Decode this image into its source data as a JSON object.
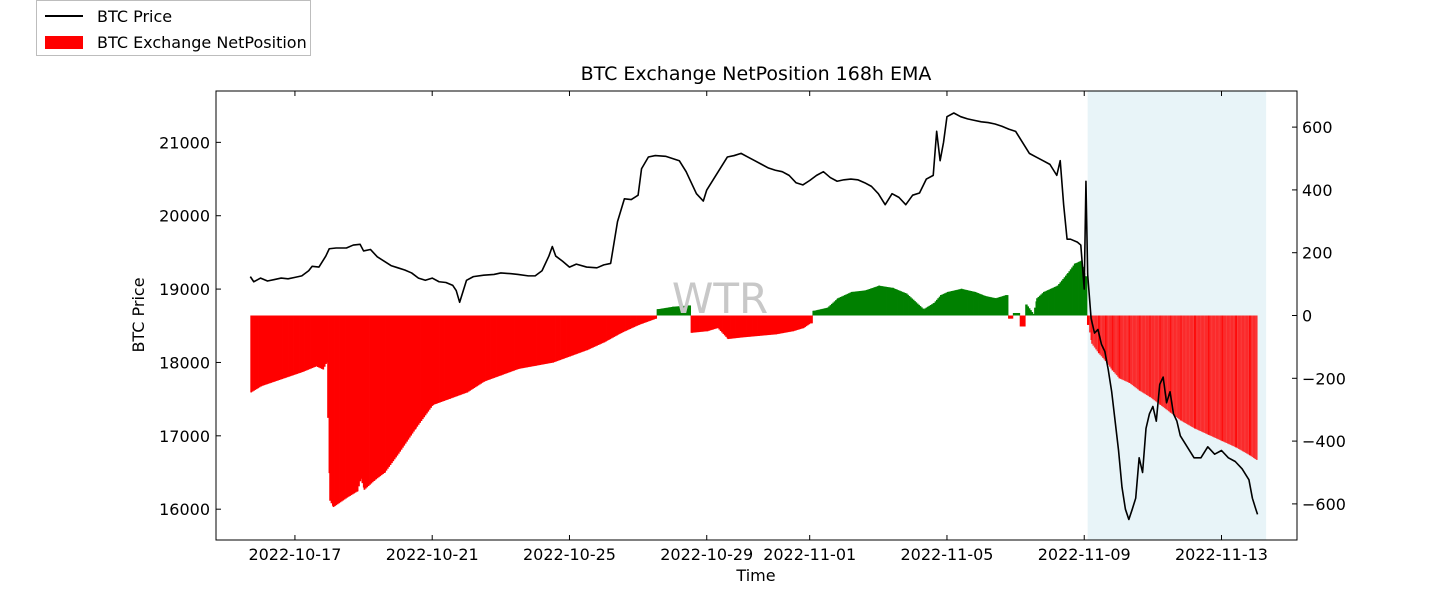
{
  "chart_data": {
    "type": "bar+line",
    "title": "BTC Exchange NetPosition 168h EMA",
    "xlabel": "Time",
    "ylabel_left": "BTC Price",
    "ylabel_right": "",
    "watermark": "WTR",
    "legend": {
      "placement": "top-left",
      "entries": [
        "BTC Price",
        "BTC Exchange NetPosition"
      ]
    },
    "x_range_days": [
      -2.3,
      29.2
    ],
    "x_ticks": [
      {
        "day": 0,
        "label": "2022-10-17"
      },
      {
        "day": 4,
        "label": "2022-10-21"
      },
      {
        "day": 8,
        "label": "2022-10-25"
      },
      {
        "day": 12,
        "label": "2022-10-29"
      },
      {
        "day": 15,
        "label": "2022-11-01"
      },
      {
        "day": 19,
        "label": "2022-11-05"
      },
      {
        "day": 23,
        "label": "2022-11-09"
      },
      {
        "day": 27,
        "label": "2022-11-13"
      }
    ],
    "ylim_left": [
      15580,
      21700
    ],
    "y_ticks_left": [
      16000,
      17000,
      18000,
      19000,
      20000,
      21000
    ],
    "ylim_right": [
      -715,
      715
    ],
    "y_ticks_right": [
      600,
      400,
      200,
      0,
      -200,
      -400,
      -600
    ],
    "y_tick_labels_right": [
      "600",
      "400",
      "200",
      "0",
      "−200",
      "−400",
      "−600"
    ],
    "shaded_region_days": [
      23.1,
      28.3
    ],
    "colors": {
      "price": "#000000",
      "negative": "#ff0000",
      "positive": "#008000",
      "shade": "#e8f4f8"
    },
    "series": [
      {
        "name": "BTC Price",
        "kind": "line",
        "points": [
          [
            -1.3,
            19170
          ],
          [
            -1.2,
            19100
          ],
          [
            -1.0,
            19150
          ],
          [
            -0.8,
            19110
          ],
          [
            -0.6,
            19130
          ],
          [
            -0.4,
            19150
          ],
          [
            -0.2,
            19140
          ],
          [
            0.0,
            19160
          ],
          [
            0.2,
            19180
          ],
          [
            0.4,
            19250
          ],
          [
            0.5,
            19310
          ],
          [
            0.7,
            19300
          ],
          [
            0.9,
            19450
          ],
          [
            1.0,
            19550
          ],
          [
            1.2,
            19560
          ],
          [
            1.5,
            19560
          ],
          [
            1.7,
            19600
          ],
          [
            1.9,
            19610
          ],
          [
            2.0,
            19520
          ],
          [
            2.2,
            19540
          ],
          [
            2.4,
            19440
          ],
          [
            2.6,
            19380
          ],
          [
            2.8,
            19320
          ],
          [
            3.0,
            19290
          ],
          [
            3.2,
            19260
          ],
          [
            3.4,
            19220
          ],
          [
            3.6,
            19150
          ],
          [
            3.8,
            19120
          ],
          [
            4.0,
            19150
          ],
          [
            4.2,
            19100
          ],
          [
            4.4,
            19090
          ],
          [
            4.6,
            19050
          ],
          [
            4.7,
            18980
          ],
          [
            4.8,
            18820
          ],
          [
            5.0,
            19120
          ],
          [
            5.2,
            19170
          ],
          [
            5.5,
            19190
          ],
          [
            5.8,
            19200
          ],
          [
            6.0,
            19220
          ],
          [
            6.3,
            19210
          ],
          [
            6.5,
            19200
          ],
          [
            6.8,
            19180
          ],
          [
            7.0,
            19180
          ],
          [
            7.2,
            19250
          ],
          [
            7.4,
            19450
          ],
          [
            7.5,
            19580
          ],
          [
            7.6,
            19450
          ],
          [
            7.8,
            19380
          ],
          [
            8.0,
            19300
          ],
          [
            8.2,
            19340
          ],
          [
            8.5,
            19300
          ],
          [
            8.8,
            19290
          ],
          [
            9.0,
            19330
          ],
          [
            9.2,
            19350
          ],
          [
            9.4,
            19920
          ],
          [
            9.6,
            20230
          ],
          [
            9.8,
            20220
          ],
          [
            10.0,
            20280
          ],
          [
            10.1,
            20640
          ],
          [
            10.3,
            20800
          ],
          [
            10.5,
            20820
          ],
          [
            10.8,
            20810
          ],
          [
            11.0,
            20780
          ],
          [
            11.2,
            20750
          ],
          [
            11.4,
            20600
          ],
          [
            11.5,
            20500
          ],
          [
            11.7,
            20300
          ],
          [
            11.9,
            20200
          ],
          [
            12.0,
            20350
          ],
          [
            12.2,
            20500
          ],
          [
            12.4,
            20650
          ],
          [
            12.6,
            20800
          ],
          [
            12.8,
            20820
          ],
          [
            13.0,
            20850
          ],
          [
            13.2,
            20800
          ],
          [
            13.4,
            20750
          ],
          [
            13.6,
            20700
          ],
          [
            13.8,
            20650
          ],
          [
            14.0,
            20620
          ],
          [
            14.2,
            20600
          ],
          [
            14.4,
            20550
          ],
          [
            14.6,
            20450
          ],
          [
            14.8,
            20420
          ],
          [
            15.0,
            20480
          ],
          [
            15.2,
            20550
          ],
          [
            15.4,
            20600
          ],
          [
            15.6,
            20520
          ],
          [
            15.8,
            20470
          ],
          [
            16.0,
            20490
          ],
          [
            16.2,
            20500
          ],
          [
            16.4,
            20490
          ],
          [
            16.6,
            20450
          ],
          [
            16.8,
            20400
          ],
          [
            17.0,
            20300
          ],
          [
            17.2,
            20150
          ],
          [
            17.4,
            20300
          ],
          [
            17.6,
            20250
          ],
          [
            17.8,
            20150
          ],
          [
            18.0,
            20280
          ],
          [
            18.2,
            20310
          ],
          [
            18.4,
            20500
          ],
          [
            18.6,
            20550
          ],
          [
            18.7,
            21150
          ],
          [
            18.8,
            20750
          ],
          [
            18.9,
            21000
          ],
          [
            19.0,
            21350
          ],
          [
            19.2,
            21400
          ],
          [
            19.4,
            21350
          ],
          [
            19.6,
            21320
          ],
          [
            19.8,
            21300
          ],
          [
            20.0,
            21280
          ],
          [
            20.2,
            21270
          ],
          [
            20.4,
            21250
          ],
          [
            20.6,
            21220
          ],
          [
            20.8,
            21180
          ],
          [
            21.0,
            21150
          ],
          [
            21.2,
            21000
          ],
          [
            21.4,
            20850
          ],
          [
            21.6,
            20800
          ],
          [
            21.8,
            20750
          ],
          [
            22.0,
            20700
          ],
          [
            22.2,
            20550
          ],
          [
            22.3,
            20750
          ],
          [
            22.4,
            20150
          ],
          [
            22.5,
            19680
          ],
          [
            22.6,
            19680
          ],
          [
            22.8,
            19640
          ],
          [
            22.9,
            19600
          ],
          [
            23.0,
            19000
          ],
          [
            23.05,
            20470
          ],
          [
            23.1,
            19200
          ],
          [
            23.2,
            18600
          ],
          [
            23.3,
            18400
          ],
          [
            23.4,
            18450
          ],
          [
            23.5,
            18250
          ],
          [
            23.6,
            18150
          ],
          [
            23.7,
            17900
          ],
          [
            23.8,
            17600
          ],
          [
            23.9,
            17200
          ],
          [
            24.0,
            16800
          ],
          [
            24.1,
            16300
          ],
          [
            24.2,
            16000
          ],
          [
            24.3,
            15860
          ],
          [
            24.4,
            16000
          ],
          [
            24.5,
            16150
          ],
          [
            24.6,
            16700
          ],
          [
            24.7,
            16500
          ],
          [
            24.8,
            17100
          ],
          [
            24.9,
            17300
          ],
          [
            25.0,
            17400
          ],
          [
            25.1,
            17200
          ],
          [
            25.2,
            17700
          ],
          [
            25.3,
            17800
          ],
          [
            25.4,
            17450
          ],
          [
            25.5,
            17600
          ],
          [
            25.6,
            17300
          ],
          [
            25.7,
            17200
          ],
          [
            25.8,
            17000
          ],
          [
            26.0,
            16850
          ],
          [
            26.2,
            16700
          ],
          [
            26.4,
            16700
          ],
          [
            26.6,
            16850
          ],
          [
            26.8,
            16750
          ],
          [
            27.0,
            16800
          ],
          [
            27.2,
            16700
          ],
          [
            27.4,
            16650
          ],
          [
            27.6,
            16550
          ],
          [
            27.8,
            16400
          ],
          [
            27.9,
            16150
          ],
          [
            28.0,
            16000
          ],
          [
            28.05,
            15930
          ]
        ]
      },
      {
        "name": "BTC Exchange NetPosition",
        "kind": "bar",
        "points": [
          [
            -1.3,
            -245
          ],
          [
            -1.0,
            -225
          ],
          [
            -0.6,
            -210
          ],
          [
            -0.2,
            -195
          ],
          [
            0.2,
            -180
          ],
          [
            0.6,
            -162
          ],
          [
            0.8,
            -172
          ],
          [
            0.9,
            -150
          ],
          [
            1.0,
            -590
          ],
          [
            1.1,
            -610
          ],
          [
            1.5,
            -580
          ],
          [
            1.8,
            -560
          ],
          [
            1.9,
            -520
          ],
          [
            2.0,
            -555
          ],
          [
            2.3,
            -525
          ],
          [
            2.6,
            -500
          ],
          [
            3.0,
            -440
          ],
          [
            3.5,
            -360
          ],
          [
            4.0,
            -285
          ],
          [
            4.5,
            -265
          ],
          [
            5.0,
            -245
          ],
          [
            5.5,
            -210
          ],
          [
            6.0,
            -190
          ],
          [
            6.5,
            -170
          ],
          [
            7.0,
            -160
          ],
          [
            7.5,
            -150
          ],
          [
            8.0,
            -130
          ],
          [
            8.5,
            -110
          ],
          [
            9.0,
            -85
          ],
          [
            9.5,
            -55
          ],
          [
            10.0,
            -30
          ],
          [
            10.5,
            -10
          ],
          [
            10.55,
            20
          ],
          [
            11.0,
            28
          ],
          [
            11.45,
            32
          ],
          [
            11.55,
            -55
          ],
          [
            12.0,
            -50
          ],
          [
            12.3,
            -40
          ],
          [
            12.6,
            -75
          ],
          [
            13.0,
            -70
          ],
          [
            13.5,
            -65
          ],
          [
            14.0,
            -60
          ],
          [
            14.5,
            -50
          ],
          [
            14.8,
            -40
          ],
          [
            15.0,
            -25
          ],
          [
            15.1,
            15
          ],
          [
            15.5,
            25
          ],
          [
            15.8,
            55
          ],
          [
            16.2,
            75
          ],
          [
            16.6,
            80
          ],
          [
            17.0,
            95
          ],
          [
            17.4,
            88
          ],
          [
            17.8,
            70
          ],
          [
            18.0,
            50
          ],
          [
            18.3,
            20
          ],
          [
            18.6,
            40
          ],
          [
            18.8,
            65
          ],
          [
            19.0,
            75
          ],
          [
            19.4,
            85
          ],
          [
            19.8,
            75
          ],
          [
            20.1,
            62
          ],
          [
            20.4,
            55
          ],
          [
            20.7,
            65
          ],
          [
            20.8,
            -10
          ],
          [
            21.0,
            8
          ],
          [
            21.2,
            -35
          ],
          [
            21.3,
            35
          ],
          [
            21.5,
            5
          ],
          [
            21.6,
            55
          ],
          [
            21.8,
            75
          ],
          [
            22.2,
            95
          ],
          [
            22.5,
            135
          ],
          [
            22.7,
            165
          ],
          [
            22.9,
            175
          ],
          [
            23.0,
            125
          ],
          [
            23.1,
            -30
          ],
          [
            23.2,
            -90
          ],
          [
            23.4,
            -120
          ],
          [
            23.6,
            -145
          ],
          [
            23.8,
            -175
          ],
          [
            24.0,
            -200
          ],
          [
            24.3,
            -215
          ],
          [
            24.6,
            -240
          ],
          [
            24.9,
            -260
          ],
          [
            25.2,
            -285
          ],
          [
            25.5,
            -310
          ],
          [
            25.8,
            -335
          ],
          [
            26.2,
            -360
          ],
          [
            26.6,
            -380
          ],
          [
            27.0,
            -400
          ],
          [
            27.4,
            -420
          ],
          [
            27.8,
            -445
          ],
          [
            28.0,
            -460
          ]
        ]
      }
    ]
  }
}
